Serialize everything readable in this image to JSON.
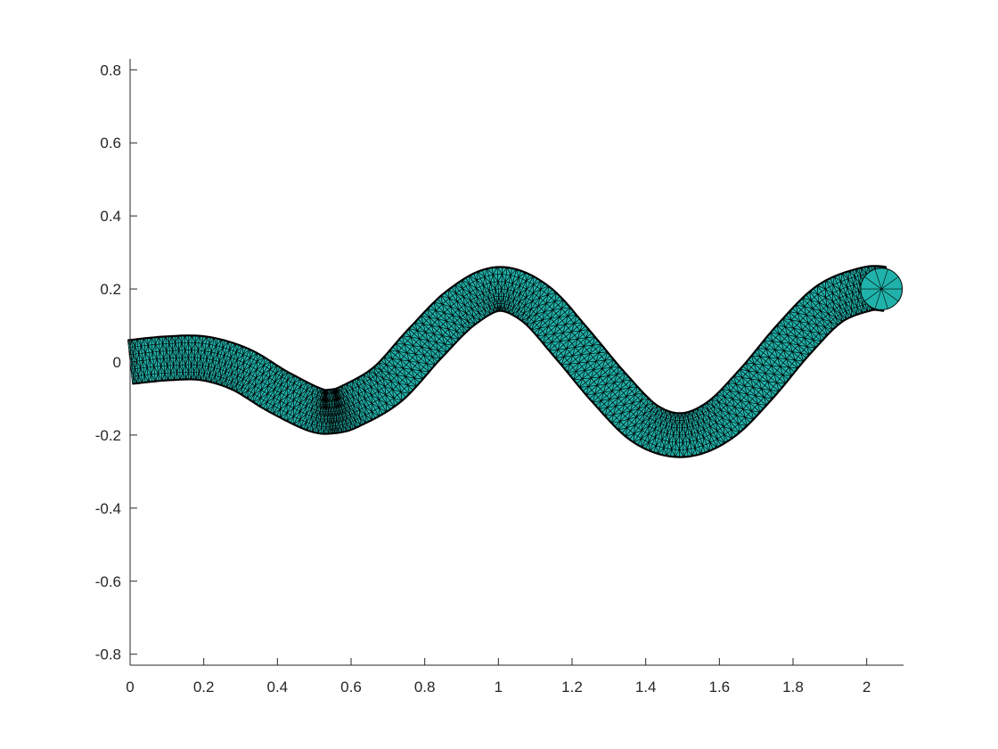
{
  "chart_data": {
    "type": "line",
    "title": "",
    "xlabel": "",
    "ylabel": "",
    "xlim": [
      0,
      2.1
    ],
    "ylim": [
      -0.83,
      0.83
    ],
    "x_ticks": [
      0,
      0.2,
      0.4,
      0.6,
      0.8,
      1,
      1.2,
      1.4,
      1.6,
      1.8,
      2
    ],
    "x_tick_labels": [
      "0",
      "0.2",
      "0.4",
      "0.6",
      "0.8",
      "1",
      "1.2",
      "1.4",
      "1.6",
      "1.8",
      "2"
    ],
    "y_ticks": [
      0.8,
      0.6,
      0.4,
      0.2,
      0,
      -0.2,
      -0.4,
      -0.6,
      -0.8
    ],
    "y_tick_labels": [
      "0.8",
      "0.6",
      "0.4",
      "0.2",
      "0",
      "-0.2",
      "-0.4",
      "-0.6",
      "-0.8"
    ],
    "grid": false,
    "box": false,
    "legend": null,
    "colors": {
      "face": "#20B2AA",
      "edge": "#000000",
      "axis": "#262626"
    },
    "series": [
      {
        "kind": "centerline",
        "x": [
          0,
          0.1,
          0.2,
          0.3,
          0.4,
          0.5,
          0.55,
          0.6,
          0.7,
          0.8,
          0.9,
          1.0,
          1.1,
          1.2,
          1.3,
          1.4,
          1.5,
          1.6,
          1.7,
          1.8,
          1.9,
          2.0,
          2.05
        ],
        "y": [
          0.0,
          0.01,
          0.01,
          -0.02,
          -0.08,
          -0.13,
          -0.135,
          -0.12,
          -0.06,
          0.05,
          0.15,
          0.2,
          0.16,
          0.05,
          -0.07,
          -0.17,
          -0.2,
          -0.16,
          -0.06,
          0.06,
          0.16,
          0.2,
          0.2
        ]
      }
    ],
    "tube_radius": 0.06,
    "end_cap": {
      "x": 2.04,
      "y": 0.2
    }
  }
}
